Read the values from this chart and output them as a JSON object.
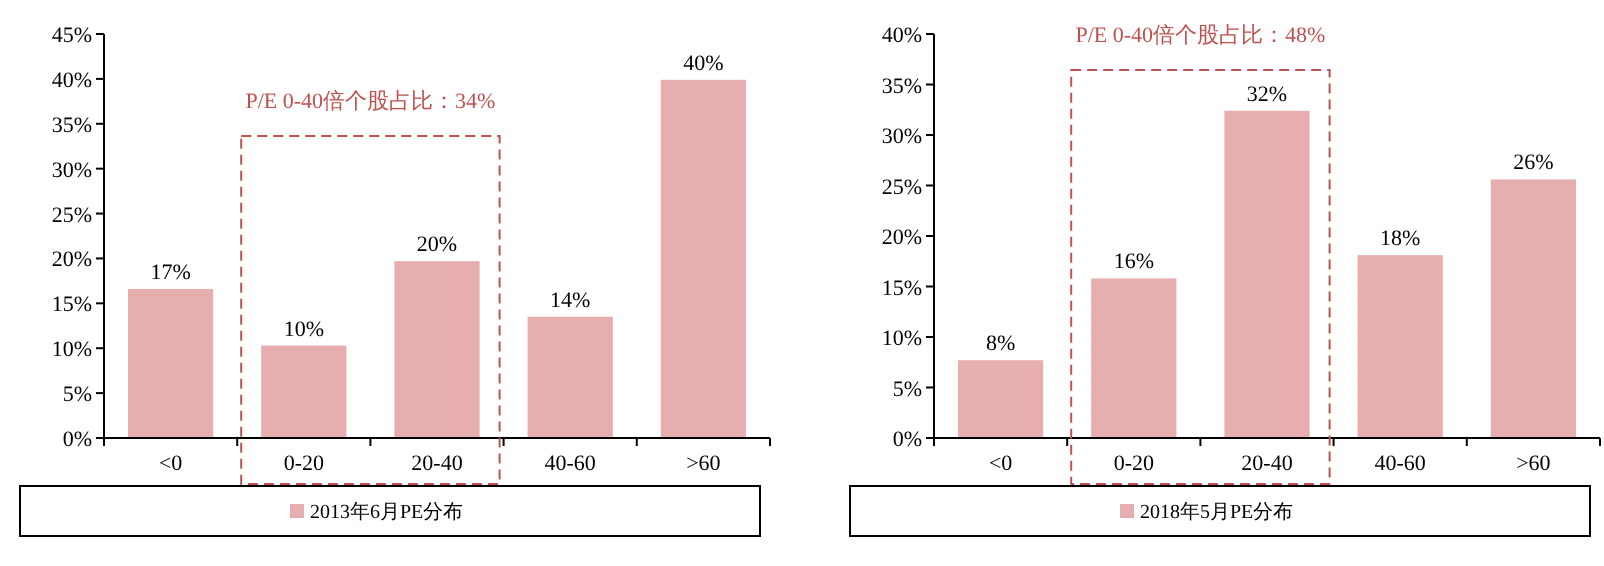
{
  "chart_data": [
    {
      "type": "bar",
      "categories": [
        "<0",
        "0-20",
        "20-40",
        "40-60",
        ">60"
      ],
      "series": [
        {
          "name": "2013年6月PE分布",
          "color": "#e6aeae",
          "values": [
            16.6,
            10.3,
            19.7,
            13.5,
            39.9
          ],
          "value_labels": [
            "17%",
            "10%",
            "20%",
            "14%",
            "40%"
          ]
        }
      ],
      "ylim": [
        0,
        45
      ],
      "yticks": [
        {
          "value": 0,
          "label": "0%"
        },
        {
          "value": 5,
          "label": "5%"
        },
        {
          "value": 10,
          "label": "10%"
        },
        {
          "value": 15,
          "label": "15%"
        },
        {
          "value": 20,
          "label": "20%"
        },
        {
          "value": 25,
          "label": "25%"
        },
        {
          "value": 30,
          "label": "30%"
        },
        {
          "value": 35,
          "label": "35%"
        },
        {
          "value": 40,
          "label": "40%"
        },
        {
          "value": 45,
          "label": "45%"
        }
      ],
      "annotations": [
        "P/E 0-40倍个股占比：34%"
      ],
      "legend": "bottom"
    },
    {
      "type": "bar",
      "categories": [
        "<0",
        "0-20",
        "20-40",
        "40-60",
        ">60"
      ],
      "series": [
        {
          "name": "2018年5月PE分布",
          "color": "#e6aeae",
          "values": [
            7.7,
            15.8,
            32.4,
            18.1,
            25.6
          ],
          "value_labels": [
            "8%",
            "16%",
            "32%",
            "18%",
            "26%"
          ]
        }
      ],
      "ylim": [
        0,
        40
      ],
      "yticks": [
        {
          "value": 0,
          "label": "0%"
        },
        {
          "value": 5,
          "label": "5%"
        },
        {
          "value": 10,
          "label": "10%"
        },
        {
          "value": 15,
          "label": "15%"
        },
        {
          "value": 20,
          "label": "20%"
        },
        {
          "value": 25,
          "label": "25%"
        },
        {
          "value": 30,
          "label": "30%"
        },
        {
          "value": 35,
          "label": "35%"
        },
        {
          "value": 40,
          "label": "40%"
        }
      ],
      "annotations": [
        "P/E 0-40倍个股占比：48%"
      ],
      "legend": "bottom"
    }
  ]
}
